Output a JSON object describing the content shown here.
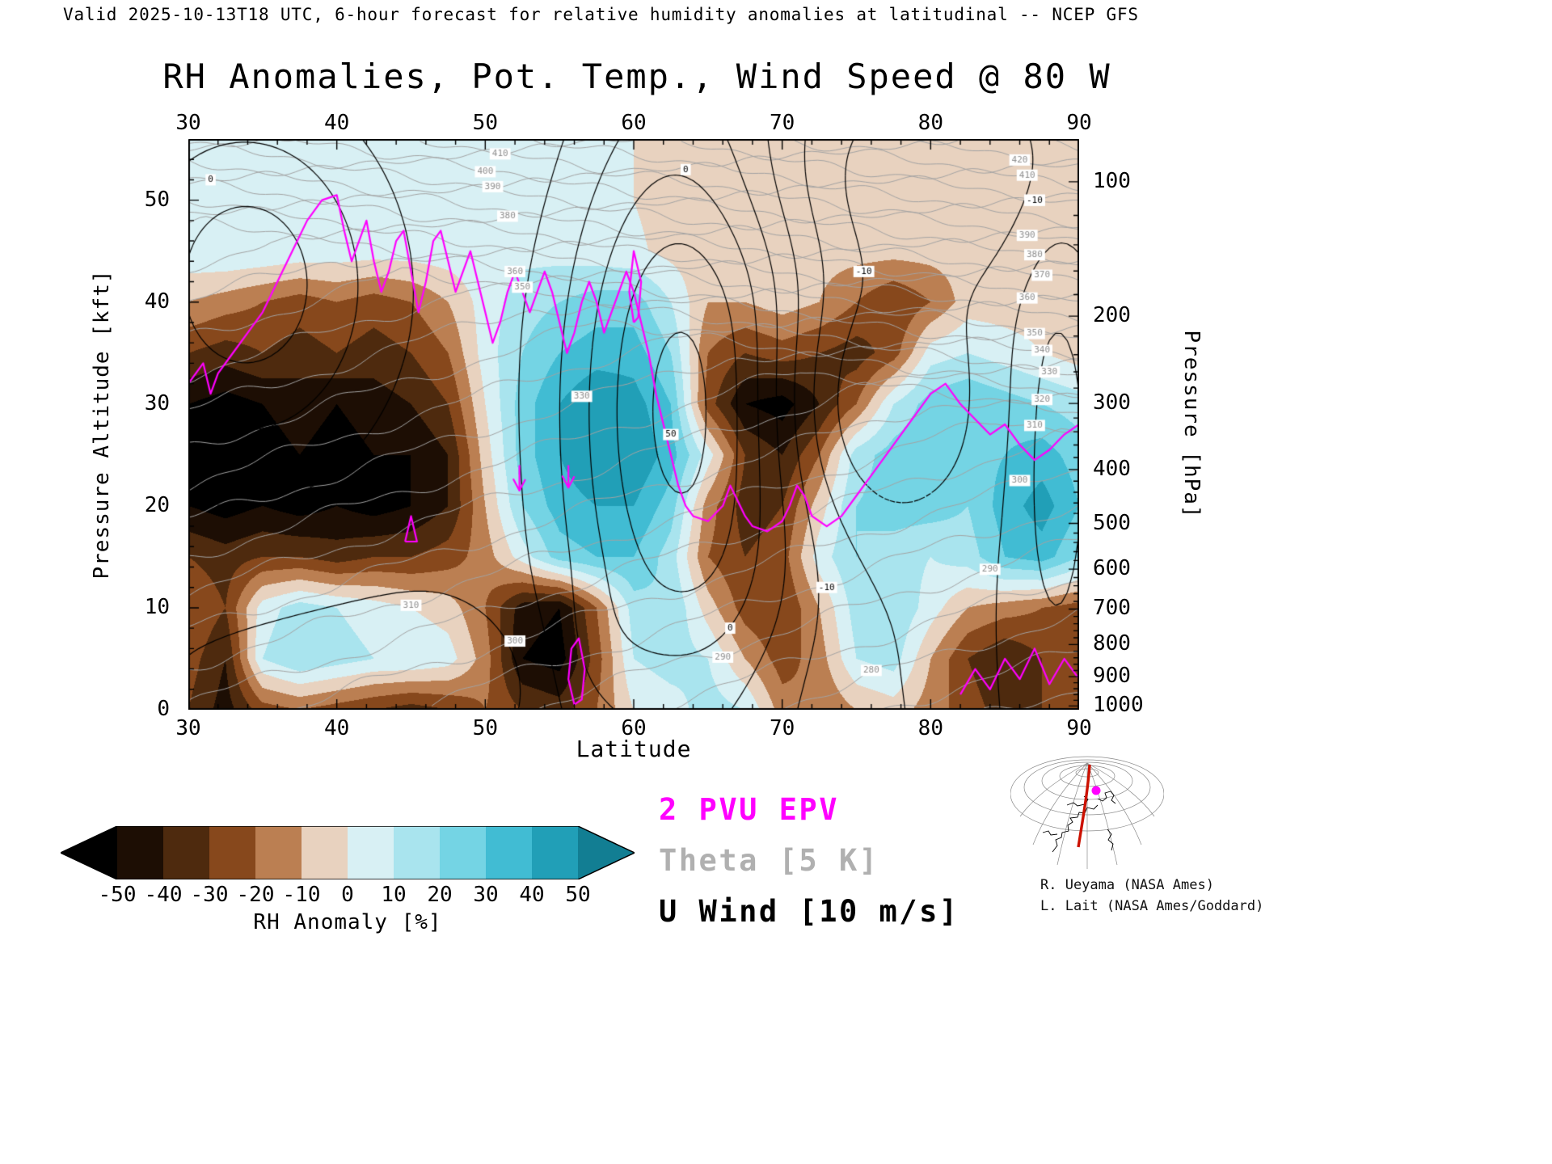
{
  "header": {
    "valid_line": "Valid 2025-10-13T18 UTC, 6-hour forecast for relative humidity anomalies at latitudinal -- NCEP GFS"
  },
  "title": "RH Anomalies, Pot. Temp., Wind Speed @ 80 W",
  "axes": {
    "x": {
      "label": "Latitude",
      "ticks": [
        30,
        40,
        50,
        60,
        70,
        80,
        90
      ],
      "range": [
        30,
        90
      ]
    },
    "y_left": {
      "label": "Pressure Altitude [kft]",
      "ticks": [
        0,
        10,
        20,
        30,
        40,
        50
      ]
    },
    "y_right": {
      "label": "Pressure [hPa]",
      "ticks": [
        100,
        200,
        300,
        400,
        500,
        600,
        700,
        800,
        900,
        1000
      ]
    }
  },
  "colorbar": {
    "label": "RH Anomaly [%]",
    "ticks": [
      -50,
      -40,
      -30,
      -20,
      -10,
      0,
      10,
      20,
      30,
      40,
      50
    ]
  },
  "legend": [
    {
      "label": "2 PVU EPV",
      "color": "#ff00ff"
    },
    {
      "label": "Theta [5 K]",
      "color": "#b0b0b0"
    },
    {
      "label": "U Wind [10 m/s]",
      "color": "#000000"
    }
  ],
  "credits": [
    "R. Ueyama (NASA Ames)",
    "L. Lait (NASA Ames/Goddard)"
  ],
  "chart_data": {
    "type": "heatmap",
    "title": "RH Anomalies, Pot. Temp., Wind Speed @ 80 W",
    "xlabel": "Latitude",
    "ylabel_left": "Pressure Altitude [kft]",
    "ylabel_right": "Pressure [hPa]",
    "x_range": [
      30,
      90
    ],
    "y_top_kft": 56,
    "levels": [
      -50,
      -40,
      -30,
      -20,
      -10,
      0,
      10,
      20,
      30,
      40,
      50
    ],
    "palette": [
      "#000000",
      "#1d0e04",
      "#4e2a0e",
      "#87481c",
      "#bb7f52",
      "#e8d2bf",
      "#d8f0f4",
      "#a9e4ee",
      "#74d4e4",
      "#41bcd3",
      "#219fb7",
      "#127e93"
    ],
    "rh_grid": {
      "lats": [
        30,
        32.5,
        35,
        37.5,
        40,
        42.5,
        45,
        47.5,
        50,
        52.5,
        55,
        57.5,
        60,
        62.5,
        65,
        67.5,
        70,
        72.5,
        75,
        77.5,
        80,
        82.5,
        85,
        87.5,
        90
      ],
      "alts_kft": [
        55,
        50,
        45,
        40,
        35,
        30,
        25,
        20,
        15,
        10,
        5,
        0
      ],
      "values": [
        [
          5,
          5,
          5,
          5,
          5,
          5,
          5,
          5,
          5,
          5,
          4,
          3,
          0,
          -3,
          -5,
          -5,
          -5,
          -5,
          -5,
          -5,
          -5,
          -5,
          -5,
          -5,
          -5
        ],
        [
          6,
          7,
          7,
          6,
          6,
          6,
          6,
          6,
          6,
          6,
          5,
          3,
          0,
          -4,
          -5,
          -5,
          -5,
          -5,
          -5,
          -5,
          -5,
          -5,
          -5,
          -5,
          -5
        ],
        [
          8,
          10,
          9,
          7,
          6,
          5,
          5,
          6,
          7,
          7,
          6,
          4,
          2,
          -3,
          -6,
          -6,
          -6,
          -6,
          -6,
          -6,
          -6,
          -6,
          -6,
          -6,
          -6
        ],
        [
          -10,
          -15,
          -20,
          -25,
          -20,
          -25,
          -20,
          -10,
          5,
          15,
          20,
          25,
          25,
          10,
          -10,
          -10,
          -5,
          -10,
          -20,
          -30,
          -20,
          -5,
          -5,
          -5,
          -6
        ],
        [
          -30,
          -35,
          -30,
          -35,
          -30,
          -35,
          -30,
          -20,
          5,
          20,
          30,
          35,
          35,
          20,
          -20,
          -30,
          -25,
          -30,
          -35,
          -25,
          5,
          10,
          5,
          0,
          -5
        ],
        [
          -50,
          -55,
          -50,
          -45,
          -50,
          -45,
          -40,
          -30,
          0,
          25,
          40,
          50,
          45,
          30,
          -25,
          -50,
          -55,
          -40,
          -20,
          10,
          25,
          30,
          25,
          20,
          15
        ],
        [
          -55,
          -55,
          -55,
          -50,
          -55,
          -50,
          -50,
          -40,
          -5,
          25,
          40,
          50,
          50,
          35,
          5,
          -30,
          -40,
          -20,
          15,
          25,
          30,
          25,
          30,
          35,
          25
        ],
        [
          -50,
          -55,
          -50,
          -55,
          -50,
          -55,
          -50,
          -40,
          -10,
          20,
          35,
          40,
          40,
          25,
          -15,
          -35,
          -30,
          -5,
          20,
          25,
          25,
          20,
          35,
          45,
          30
        ],
        [
          -30,
          -35,
          -30,
          -30,
          -35,
          -30,
          -30,
          -25,
          -15,
          5,
          25,
          30,
          30,
          15,
          -20,
          -30,
          -25,
          5,
          20,
          15,
          10,
          15,
          30,
          35,
          20
        ],
        [
          -20,
          -30,
          5,
          15,
          10,
          5,
          0,
          -5,
          -20,
          -45,
          -50,
          -20,
          15,
          20,
          -5,
          -25,
          -30,
          -10,
          15,
          20,
          5,
          -10,
          -15,
          -20,
          -25
        ],
        [
          -25,
          -40,
          10,
          20,
          15,
          10,
          10,
          5,
          -15,
          -50,
          -55,
          -25,
          10,
          15,
          10,
          -10,
          -25,
          -15,
          10,
          15,
          -10,
          -30,
          -40,
          -30,
          -20
        ],
        [
          -30,
          -45,
          -25,
          -20,
          -25,
          -30,
          -35,
          -30,
          -20,
          -30,
          -35,
          -20,
          0,
          5,
          15,
          10,
          -15,
          -20,
          -10,
          -5,
          -15,
          -25,
          -35,
          -30,
          -25
        ]
      ]
    },
    "theta": {
      "interval": 5,
      "t_surface": [
        304,
        -0.62
      ],
      "tropopause": [
        48,
        -0.36
      ],
      "strat_gamma": 4.2,
      "label_positions": [
        [
          410,
          51
        ],
        [
          400,
          50
        ],
        [
          390,
          50.5
        ],
        [
          380,
          51.5
        ],
        [
          360,
          52
        ],
        [
          350,
          52.5
        ],
        [
          330,
          56.5
        ],
        [
          310,
          45
        ],
        [
          300,
          52
        ],
        [
          290,
          66
        ],
        [
          280,
          76
        ],
        [
          420,
          86
        ],
        [
          410,
          86.5
        ],
        [
          400,
          87
        ],
        [
          390,
          86.5
        ],
        [
          380,
          87
        ],
        [
          370,
          87.5
        ],
        [
          360,
          86.5
        ],
        [
          350,
          87
        ],
        [
          340,
          87.5
        ],
        [
          330,
          88
        ],
        [
          320,
          87.5
        ],
        [
          310,
          87
        ],
        [
          300,
          86
        ],
        [
          290,
          84
        ]
      ]
    },
    "uwind": {
      "interval": 10,
      "levels": [
        -30,
        -20,
        -10,
        0,
        10,
        20,
        30,
        40,
        50
      ],
      "background": [
        3,
        -0.08,
        -0.05
      ],
      "jets": [
        {
          "lat": 34,
          "alt": 42,
          "slat": 7,
          "salt": 13,
          "amp": 35
        },
        {
          "lat": 63.5,
          "alt": 30,
          "slat": 6,
          "salt": 24,
          "amp": 55
        },
        {
          "lat": 75.5,
          "alt": 30,
          "slat": 5,
          "salt": 9,
          "amp": -22
        },
        {
          "lat": 79,
          "alt": 52,
          "slat": 9,
          "salt": 7,
          "amp": -15
        },
        {
          "lat": 88.5,
          "alt": 26,
          "slat": 2.2,
          "salt": 18,
          "amp": 18
        },
        {
          "lat": 47,
          "alt": 3,
          "slat": 12,
          "salt": 5,
          "amp": -10
        },
        {
          "lat": 57,
          "alt": 4,
          "slat": 3,
          "salt": 5,
          "amp": 10
        }
      ],
      "labels": [
        {
          "text": "0",
          "lat": 63.5,
          "alt": 53
        },
        {
          "text": "0",
          "lat": 66.5,
          "alt": 8
        },
        {
          "text": "0",
          "lat": 31.5,
          "alt": 52
        },
        {
          "text": "-10",
          "lat": 75.5,
          "alt": 43
        },
        {
          "text": "-10",
          "lat": 73,
          "alt": 12
        },
        {
          "text": "-10",
          "lat": 87,
          "alt": 50
        },
        {
          "text": "50",
          "lat": 62.5,
          "alt": 27
        }
      ]
    },
    "epv": {
      "value_PVU": 2,
      "main": [
        [
          30,
          32
        ],
        [
          31,
          34
        ],
        [
          31.5,
          31
        ],
        [
          32,
          33
        ],
        [
          33,
          35
        ],
        [
          34,
          37
        ],
        [
          35,
          39
        ],
        [
          36,
          42
        ],
        [
          37,
          45
        ],
        [
          38,
          48
        ],
        [
          39,
          50
        ],
        [
          40,
          50.5
        ],
        [
          40.5,
          47
        ],
        [
          41,
          44
        ],
        [
          41.5,
          46
        ],
        [
          42,
          48
        ],
        [
          42.5,
          44
        ],
        [
          43,
          41
        ],
        [
          43.5,
          43
        ],
        [
          44,
          46
        ],
        [
          44.5,
          47
        ],
        [
          45,
          43
        ],
        [
          45.5,
          39
        ],
        [
          46,
          42
        ],
        [
          46.5,
          46
        ],
        [
          47,
          47
        ],
        [
          47.5,
          44
        ],
        [
          48,
          41
        ],
        [
          48.5,
          43
        ],
        [
          49,
          45
        ],
        [
          49.5,
          42
        ],
        [
          50,
          39
        ],
        [
          50.5,
          36
        ],
        [
          51,
          38
        ],
        [
          51.5,
          41
        ],
        [
          52,
          43
        ],
        [
          52.5,
          41
        ],
        [
          53,
          39
        ],
        [
          53.5,
          41
        ],
        [
          54,
          43
        ],
        [
          54.5,
          41
        ],
        [
          55,
          38
        ],
        [
          55.5,
          35
        ],
        [
          56,
          37
        ],
        [
          56.5,
          40
        ],
        [
          57,
          42
        ],
        [
          57.5,
          40
        ],
        [
          58,
          37
        ],
        [
          58.5,
          39
        ],
        [
          59,
          41
        ],
        [
          59.5,
          43
        ],
        [
          60,
          41
        ],
        [
          60.5,
          38
        ],
        [
          61,
          35
        ],
        [
          61.5,
          31
        ],
        [
          62,
          28
        ],
        [
          62.5,
          25
        ],
        [
          63,
          22
        ],
        [
          63.5,
          20
        ],
        [
          64,
          19
        ],
        [
          65,
          18.5
        ],
        [
          66,
          20
        ],
        [
          66.5,
          22
        ],
        [
          67,
          20.5
        ],
        [
          67.5,
          19
        ],
        [
          68,
          18
        ],
        [
          69,
          17.5
        ],
        [
          70,
          18.5
        ],
        [
          70.5,
          20
        ],
        [
          71,
          22
        ],
        [
          71.5,
          21
        ],
        [
          72,
          19
        ],
        [
          73,
          18
        ],
        [
          74,
          19
        ],
        [
          75,
          21
        ],
        [
          76,
          23
        ],
        [
          77,
          25
        ],
        [
          78,
          27
        ],
        [
          79,
          29
        ],
        [
          80,
          31
        ],
        [
          81,
          32
        ],
        [
          82,
          30
        ],
        [
          83,
          28.5
        ],
        [
          84,
          27
        ],
        [
          85,
          28
        ],
        [
          86,
          26
        ],
        [
          87,
          24.5
        ],
        [
          88,
          25.5
        ],
        [
          89,
          27
        ],
        [
          90,
          28
        ]
      ],
      "extra": [
        [
          [
            44.6,
            16.5
          ],
          [
            45.4,
            16.5
          ],
          [
            45,
            19
          ],
          [
            44.6,
            16.5
          ]
        ],
        [
          [
            56,
            0.5
          ],
          [
            55.6,
            3
          ],
          [
            55.8,
            6
          ],
          [
            56.3,
            7
          ],
          [
            56.7,
            4
          ],
          [
            56.5,
            1
          ],
          [
            56,
            0.5
          ]
        ],
        [
          [
            60,
            38
          ],
          [
            59.7,
            41
          ],
          [
            60,
            45
          ],
          [
            60.5,
            42
          ],
          [
            60.3,
            38.5
          ],
          [
            60,
            38
          ]
        ],
        [
          [
            82,
            1.5
          ],
          [
            83,
            4
          ],
          [
            84,
            2
          ],
          [
            85,
            5
          ],
          [
            86,
            3
          ],
          [
            87,
            6
          ],
          [
            88,
            2.5
          ],
          [
            89,
            5
          ],
          [
            90,
            3
          ]
        ],
        [
          [
            52.3,
            24
          ],
          [
            52.3,
            21.5
          ],
          [
            51.9,
            22.6
          ],
          [
            52.3,
            21.5
          ],
          [
            52.7,
            22.6
          ]
        ],
        [
          [
            55.6,
            24
          ],
          [
            55.6,
            21.8
          ],
          [
            55.2,
            22.9
          ],
          [
            55.6,
            21.8
          ],
          [
            56,
            22.9
          ]
        ]
      ]
    }
  }
}
